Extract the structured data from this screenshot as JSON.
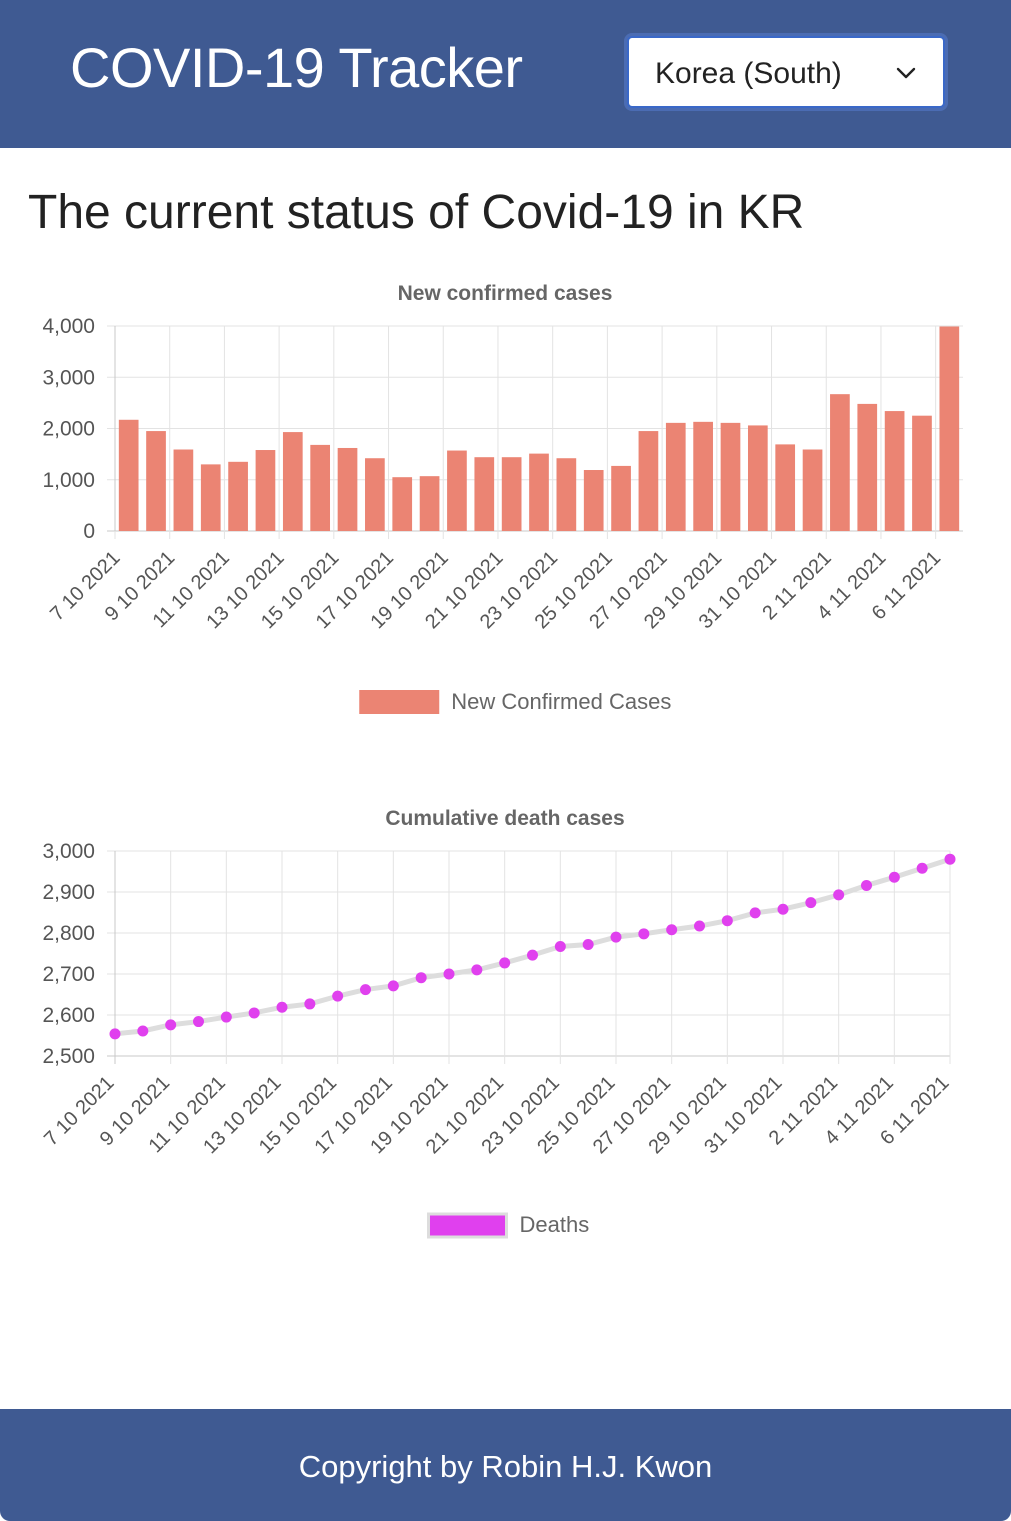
{
  "header": {
    "title": "COVID-19 Tracker",
    "country_select": {
      "selected": "Korea (South)",
      "icon": "chevron-down-icon"
    }
  },
  "main": {
    "heading": "The current status of Covid-19 in KR"
  },
  "colors": {
    "header_bg": "#3f5a92",
    "bar": "#eb8473",
    "death_point": "#e040ee",
    "death_line": "#dddddd"
  },
  "chart_data": [
    {
      "type": "bar",
      "title": "New confirmed cases",
      "categories": [
        "7 10 2021",
        "8 10 2021",
        "9 10 2021",
        "10 10 2021",
        "11 10 2021",
        "12 10 2021",
        "13 10 2021",
        "14 10 2021",
        "15 10 2021",
        "16 10 2021",
        "17 10 2021",
        "18 10 2021",
        "19 10 2021",
        "20 10 2021",
        "21 10 2021",
        "22 10 2021",
        "23 10 2021",
        "24 10 2021",
        "25 10 2021",
        "26 10 2021",
        "27 10 2021",
        "28 10 2021",
        "29 10 2021",
        "30 10 2021",
        "31 10 2021",
        "1 11 2021",
        "2 11 2021",
        "3 11 2021",
        "4 11 2021",
        "5 11 2021",
        "6 11 2021"
      ],
      "tick_labels": [
        "7 10 2021",
        "9 10 2021",
        "11 10 2021",
        "13 10 2021",
        "15 10 2021",
        "17 10 2021",
        "19 10 2021",
        "21 10 2021",
        "23 10 2021",
        "25 10 2021",
        "27 10 2021",
        "29 10 2021",
        "31 10 2021",
        "2 11 2021",
        "4 11 2021",
        "6 11 2021"
      ],
      "series": [
        {
          "name": "New Confirmed Cases",
          "values": [
            2170,
            1950,
            1590,
            1300,
            1350,
            1580,
            1930,
            1680,
            1620,
            1420,
            1050,
            1070,
            1570,
            1440,
            1440,
            1510,
            1420,
            1190,
            1270,
            1950,
            2110,
            2130,
            2110,
            2060,
            1690,
            1590,
            2670,
            2480,
            2340,
            2250,
            3990
          ]
        }
      ],
      "ylim": [
        0,
        4000
      ],
      "yticks": [
        "4,000",
        "3,000",
        "2,000",
        "1,000",
        "0"
      ],
      "grid": true,
      "legend": "bottom"
    },
    {
      "type": "line",
      "title": "Cumulative death cases",
      "x": [
        "7 10 2021",
        "8 10 2021",
        "9 10 2021",
        "10 10 2021",
        "11 10 2021",
        "12 10 2021",
        "13 10 2021",
        "14 10 2021",
        "15 10 2021",
        "16 10 2021",
        "17 10 2021",
        "18 10 2021",
        "19 10 2021",
        "20 10 2021",
        "21 10 2021",
        "22 10 2021",
        "23 10 2021",
        "24 10 2021",
        "25 10 2021",
        "26 10 2021",
        "27 10 2021",
        "28 10 2021",
        "29 10 2021",
        "30 10 2021",
        "31 10 2021",
        "1 11 2021",
        "2 11 2021",
        "3 11 2021",
        "4 11 2021",
        "5 11 2021",
        "6 11 2021"
      ],
      "tick_labels": [
        "7 10 2021",
        "9 10 2021",
        "11 10 2021",
        "13 10 2021",
        "15 10 2021",
        "17 10 2021",
        "19 10 2021",
        "21 10 2021",
        "23 10 2021",
        "25 10 2021",
        "27 10 2021",
        "29 10 2021",
        "31 10 2021",
        "2 11 2021",
        "4 11 2021",
        "6 11 2021"
      ],
      "series": [
        {
          "name": "Deaths",
          "values": [
            2554,
            2561,
            2576,
            2584,
            2595,
            2605,
            2619,
            2627,
            2646,
            2662,
            2671,
            2691,
            2700,
            2710,
            2727,
            2746,
            2767,
            2772,
            2790,
            2798,
            2808,
            2817,
            2830,
            2849,
            2858,
            2874,
            2893,
            2916,
            2936,
            2958,
            2980
          ]
        }
      ],
      "ylim": [
        2500,
        3000
      ],
      "yticks": [
        "3,000",
        "2,900",
        "2,800",
        "2,700",
        "2,600",
        "2,500"
      ],
      "grid": true,
      "legend": "bottom"
    }
  ],
  "footer": {
    "text": "Copyright by Robin H.J. Kwon"
  }
}
